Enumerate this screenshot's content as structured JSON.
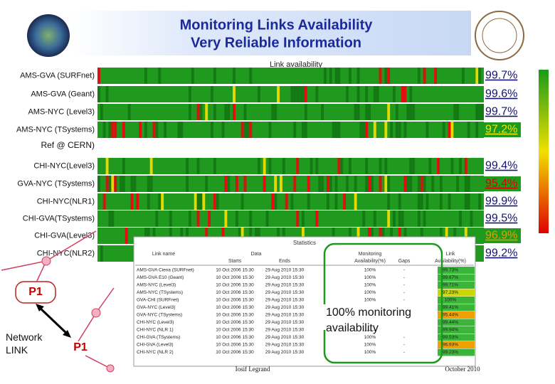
{
  "header": {
    "title_lines": [
      "Monitoring Links Availability",
      "Very Reliable Information"
    ]
  },
  "chart": {
    "title": "Link availability",
    "links": [
      {
        "name": "AMS-GVA (SURFnet)",
        "availability": "99.7%",
        "color": "#14146e"
      },
      {
        "name": "AMS-GVA (Geant)",
        "availability": "99.6%",
        "color": "#14146e"
      },
      {
        "name": "AMS-NYC (Level3)",
        "availability": "99.7%",
        "color": "#14146e"
      },
      {
        "name": "AMS-NYC (TSystems)",
        "availability": "97.2%",
        "color": "#f2e600"
      },
      {
        "name": "CHI-NYC(Level3)",
        "availability": "99.4%",
        "color": "#14146e"
      },
      {
        "name": "GVA-NYC (TSystems)",
        "availability": "95.4%",
        "color": "#e00000"
      },
      {
        "name": "CHI-NYC(NLR1)",
        "availability": "99.9%",
        "color": "#14146e"
      },
      {
        "name": "CHI-GVA(TSystems)",
        "availability": "99.5%",
        "color": "#14146e"
      },
      {
        "name": "CHI-GVA(Level3)",
        "availability": "96.9%",
        "color": "#e0a000"
      },
      {
        "name": "CHI-NYC(NLR2)",
        "availability": "99.2%",
        "color": "#14146e"
      }
    ],
    "reference_label": "Ref @ CERN)"
  },
  "table": {
    "title": "Statistics",
    "group_headers": [
      "Link name",
      "Data",
      "Monitoring",
      "Link"
    ],
    "columns": [
      "Starts",
      "Ends",
      "Availability(%)",
      "Gaps",
      "Availability(%)"
    ],
    "rows": [
      [
        "AMS-GVA Ciena (SURFnet)",
        "10 Oct 2006 15:30",
        "29 Aug 2010 15:30",
        "100%",
        "-",
        "99.73%"
      ],
      [
        "AMS-GVA E10 (Geant)",
        "10 Oct 2006 15:30",
        "29 Aug 2010 15:30",
        "100%",
        "-",
        "99.67%"
      ],
      [
        "AMS-NYC (Level3)",
        "10 Oct 2006 15:30",
        "29 Aug 2010 15:30",
        "100%",
        "-",
        "99.71%"
      ],
      [
        "AMS-NYC (TSystems)",
        "10 Oct 2006 15:30",
        "29 Aug 2010 15:30",
        "100%",
        "-",
        "97.23%"
      ],
      [
        "GVA-CHI (SURFnet)",
        "10 Oct 2006 15:30",
        "29 Aug 2010 15:30",
        "100%",
        "-",
        "100%"
      ],
      [
        "GVA-NYC (Level3)",
        "10 Oct 2006 15:30",
        "29 Aug 2010 15:30",
        "100%",
        "-",
        "99.41%"
      ],
      [
        "GVA-NYC (TSystems)",
        "10 Oct 2006 15:30",
        "29 Aug 2010 15:30",
        "100%",
        "-",
        "95.44%"
      ],
      [
        "CHI-NYC (Level3)",
        "10 Oct 2006 15:30",
        "29 Aug 2010 15:30",
        "100%",
        "-",
        "99.44%"
      ],
      [
        "CHI-NYC (NLR 1)",
        "10 Oct 2006 15:30",
        "29 Aug 2010 15:30",
        "100%",
        "-",
        "99.94%"
      ],
      [
        "CHI-GVA (TSystems)",
        "10 Oct 2006 15:30",
        "29 Aug 2010 15:30",
        "100%",
        "-",
        "99.53%"
      ],
      [
        "CHI-GVA (Level3)",
        "10 Oct 2006 15:30",
        "29 Aug 2010 15:30",
        "100%",
        "-",
        "96.93%"
      ],
      [
        "CHI-NYC (NLR 2)",
        "10 Oct 2006 15:30",
        "29 Aug 2010 15:30",
        "100%",
        "-",
        "99.23%"
      ]
    ]
  },
  "callout": "100% monitoring availability",
  "diagram": {
    "node_top": "P1",
    "node_bottom": "P1",
    "link_label": "Network LINK"
  },
  "footer": {
    "author": "Iosif Legrand",
    "date": "October 2010"
  }
}
